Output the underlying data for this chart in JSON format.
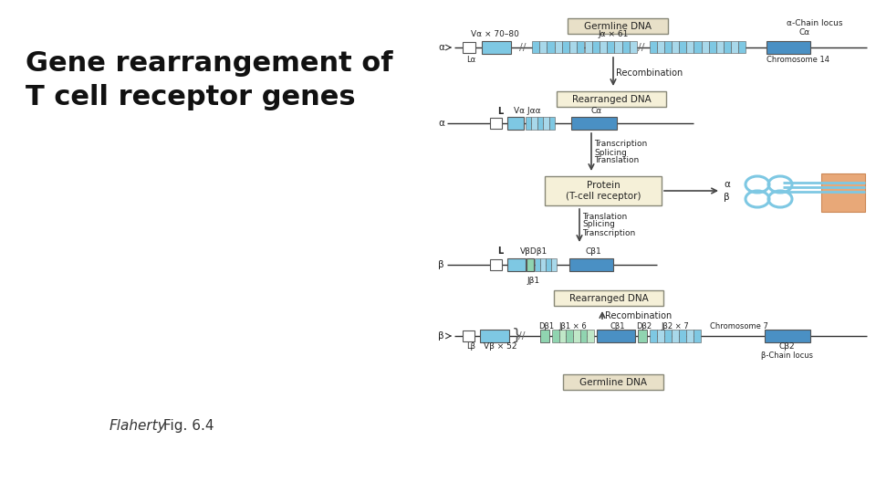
{
  "title": "Gene rearrangement of\nT cell receptor genes",
  "caption_italic": "Flaherty",
  "caption_normal": " Fig. 6.4",
  "bg_color": "#ffffff",
  "title_fontsize": 22,
  "caption_fontsize": 11,
  "light_blue": "#7EC8E3",
  "medium_blue": "#4A90C4",
  "light_green": "#90D4B0",
  "light_green2": "#c0e8c8",
  "lighter_blue": "#a8d8ea",
  "box_fill_germline": "#e8e0c8",
  "box_fill_rearranged": "#f5f0d8",
  "box_fill_protein": "#f5f0d8",
  "line_color": "#333333",
  "text_color": "#222222",
  "arrow_color": "#444444",
  "orange_skin": "#E8A878",
  "box_edge_color": "#888877"
}
